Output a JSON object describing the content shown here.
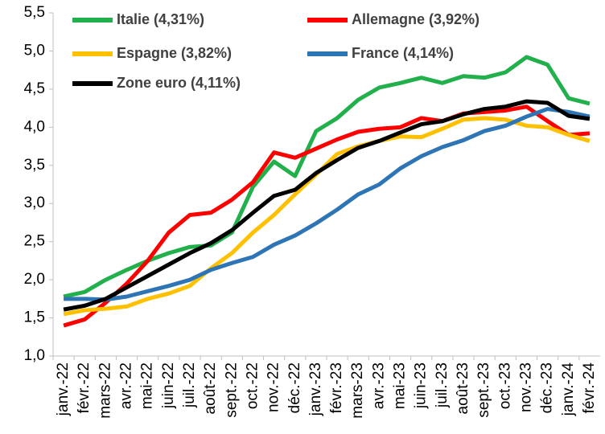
{
  "chart_data": {
    "type": "line",
    "categories": [
      "janv.-22",
      "févr.-22",
      "mars-22",
      "avr.-22",
      "mai-22",
      "juin-22",
      "juil.-22",
      "août-22",
      "sept.-22",
      "oct.-22",
      "nov.-22",
      "déc.-22",
      "janv.-23",
      "févr.-23",
      "mars-23",
      "avr.-23",
      "mai-23",
      "juin-23",
      "juil.-23",
      "août-23",
      "sept.-23",
      "oct.-23",
      "nov.-23",
      "déc.-23",
      "janv.-24",
      "févr.-24"
    ],
    "series": [
      {
        "name": "Italie (4,31%)",
        "color": "#21b04b",
        "values": [
          1.78,
          1.84,
          2.0,
          2.13,
          2.25,
          2.35,
          2.43,
          2.45,
          2.62,
          3.22,
          3.55,
          3.36,
          3.95,
          4.12,
          4.36,
          4.52,
          4.58,
          4.65,
          4.58,
          4.67,
          4.65,
          4.72,
          4.92,
          4.82,
          4.38,
          4.31
        ]
      },
      {
        "name": "Allemagne (3,92%)",
        "color": "#ff0000",
        "values": [
          1.4,
          1.48,
          1.7,
          1.95,
          2.25,
          2.62,
          2.85,
          2.88,
          3.05,
          3.28,
          3.67,
          3.6,
          3.72,
          3.84,
          3.94,
          3.98,
          4.0,
          4.12,
          4.08,
          4.18,
          4.2,
          4.22,
          4.27,
          4.08,
          3.9,
          3.92
        ]
      },
      {
        "name": "Espagne (3,82%)",
        "color": "#ffc000",
        "values": [
          1.55,
          1.6,
          1.62,
          1.65,
          1.75,
          1.82,
          1.92,
          2.15,
          2.35,
          2.62,
          2.85,
          3.12,
          3.38,
          3.65,
          3.75,
          3.82,
          3.88,
          3.87,
          3.98,
          4.1,
          4.12,
          4.1,
          4.02,
          4.0,
          3.9,
          3.82
        ]
      },
      {
        "name": "France (4,14%)",
        "color": "#2e75b6",
        "values": [
          1.75,
          1.75,
          1.74,
          1.78,
          1.85,
          1.92,
          2.0,
          2.13,
          2.22,
          2.3,
          2.46,
          2.58,
          2.74,
          2.92,
          3.12,
          3.25,
          3.46,
          3.62,
          3.74,
          3.83,
          3.95,
          4.02,
          4.14,
          4.24,
          4.2,
          4.14
        ]
      },
      {
        "name": "Zone euro (4,11%)",
        "color": "#000000",
        "values": [
          1.61,
          1.66,
          1.75,
          1.9,
          2.05,
          2.2,
          2.35,
          2.48,
          2.65,
          2.88,
          3.1,
          3.18,
          3.4,
          3.57,
          3.73,
          3.82,
          3.93,
          4.04,
          4.08,
          4.17,
          4.24,
          4.27,
          4.34,
          4.32,
          4.15,
          4.11
        ]
      }
    ],
    "ylim": [
      1,
      5.5
    ],
    "yticks": [
      {
        "value": 1,
        "label": "1,0"
      },
      {
        "value": 1.5,
        "label": "1,5"
      },
      {
        "value": 2,
        "label": "2,0"
      },
      {
        "value": 2.5,
        "label": "2,5"
      },
      {
        "value": 3,
        "label": "3,0"
      },
      {
        "value": 3.5,
        "label": "3,5"
      },
      {
        "value": 4,
        "label": "4,0"
      },
      {
        "value": 4.5,
        "label": "4,5"
      },
      {
        "value": 5,
        "label": "5,0"
      },
      {
        "value": 5.5,
        "label": "5,5"
      }
    ]
  }
}
